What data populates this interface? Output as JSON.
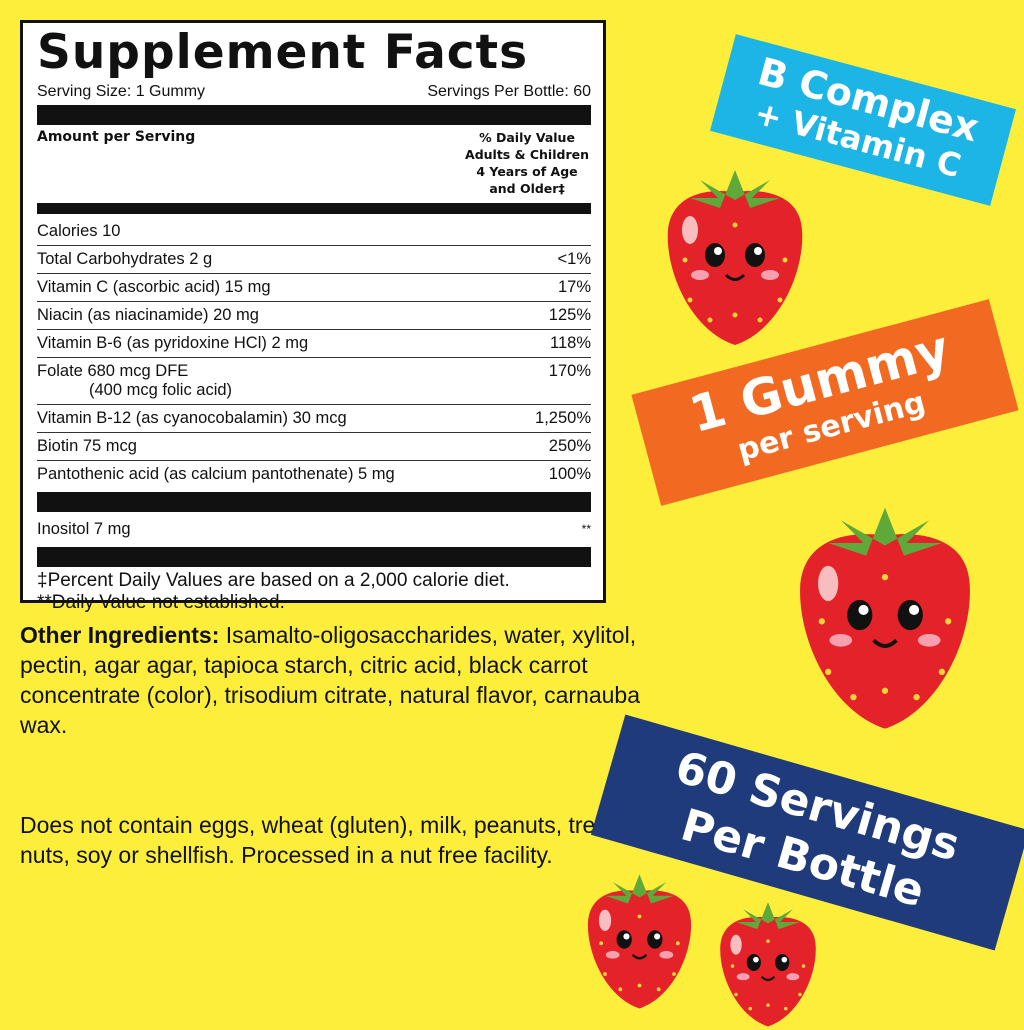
{
  "label": {
    "title": "Supplement Facts",
    "serving_size": "Serving Size: 1 Gummy",
    "servings_per_bottle": "Servings Per Bottle: 60",
    "amount_header": "Amount per Serving",
    "dv_header": [
      "% Daily Value",
      "Adults & Children",
      "4 Years of Age",
      "and Older‡"
    ],
    "rows": [
      {
        "name": "Calories 10",
        "dv": ""
      },
      {
        "name": "Total Carbohydrates 2 g",
        "dv": "<1%"
      },
      {
        "name": "Vitamin C (ascorbic acid) 15 mg",
        "dv": "17%"
      },
      {
        "name": "Niacin (as niacinamide) 20 mg",
        "dv": "125%"
      },
      {
        "name": "Vitamin B-6 (as pyridoxine HCl) 2 mg",
        "dv": "118%"
      },
      {
        "name": "Folate 680 mcg DFE",
        "sub": "(400 mcg folic acid)",
        "dv": "170%"
      },
      {
        "name": "Vitamin B-12 (as cyanocobalamin) 30 mcg",
        "dv": "1,250%"
      },
      {
        "name": "Biotin 75 mcg",
        "dv": "250%"
      },
      {
        "name": "Pantothenic acid (as calcium pantothenate) 5 mg",
        "dv": "100%"
      }
    ],
    "other_row": {
      "name": "Inositol 7 mg",
      "dv": "**"
    },
    "footnote1": "‡Percent Daily Values are based on a 2,000 calorie diet.",
    "footnote2": "**Daily Value not established."
  },
  "ingredients": {
    "label": "Other Ingredients:",
    "text": " Isamalto-oligosaccharides, water, xylitol, pectin, agar agar, tapioca starch, citric acid, black carrot concentrate (color), trisodium citrate, natural flavor, carnauba wax."
  },
  "allergen": "Does not contain eggs, wheat (gluten), milk, peanuts, tree nuts, soy or shellfish. Processed in a nut free facility.",
  "banners": {
    "b_complex": {
      "line1": "B Complex",
      "line2": "+ Vitamin C",
      "color": "#1db4e6"
    },
    "gummy": {
      "line1": "1 Gummy",
      "line2": "per serving",
      "color": "#f26a22"
    },
    "servings": {
      "line1": "60 Servings",
      "line2": "Per Bottle",
      "color": "#1f3b7c"
    }
  },
  "colors": {
    "background": "#fcee3a",
    "strawberry": "#e32329",
    "leaf": "#5fa93a"
  }
}
